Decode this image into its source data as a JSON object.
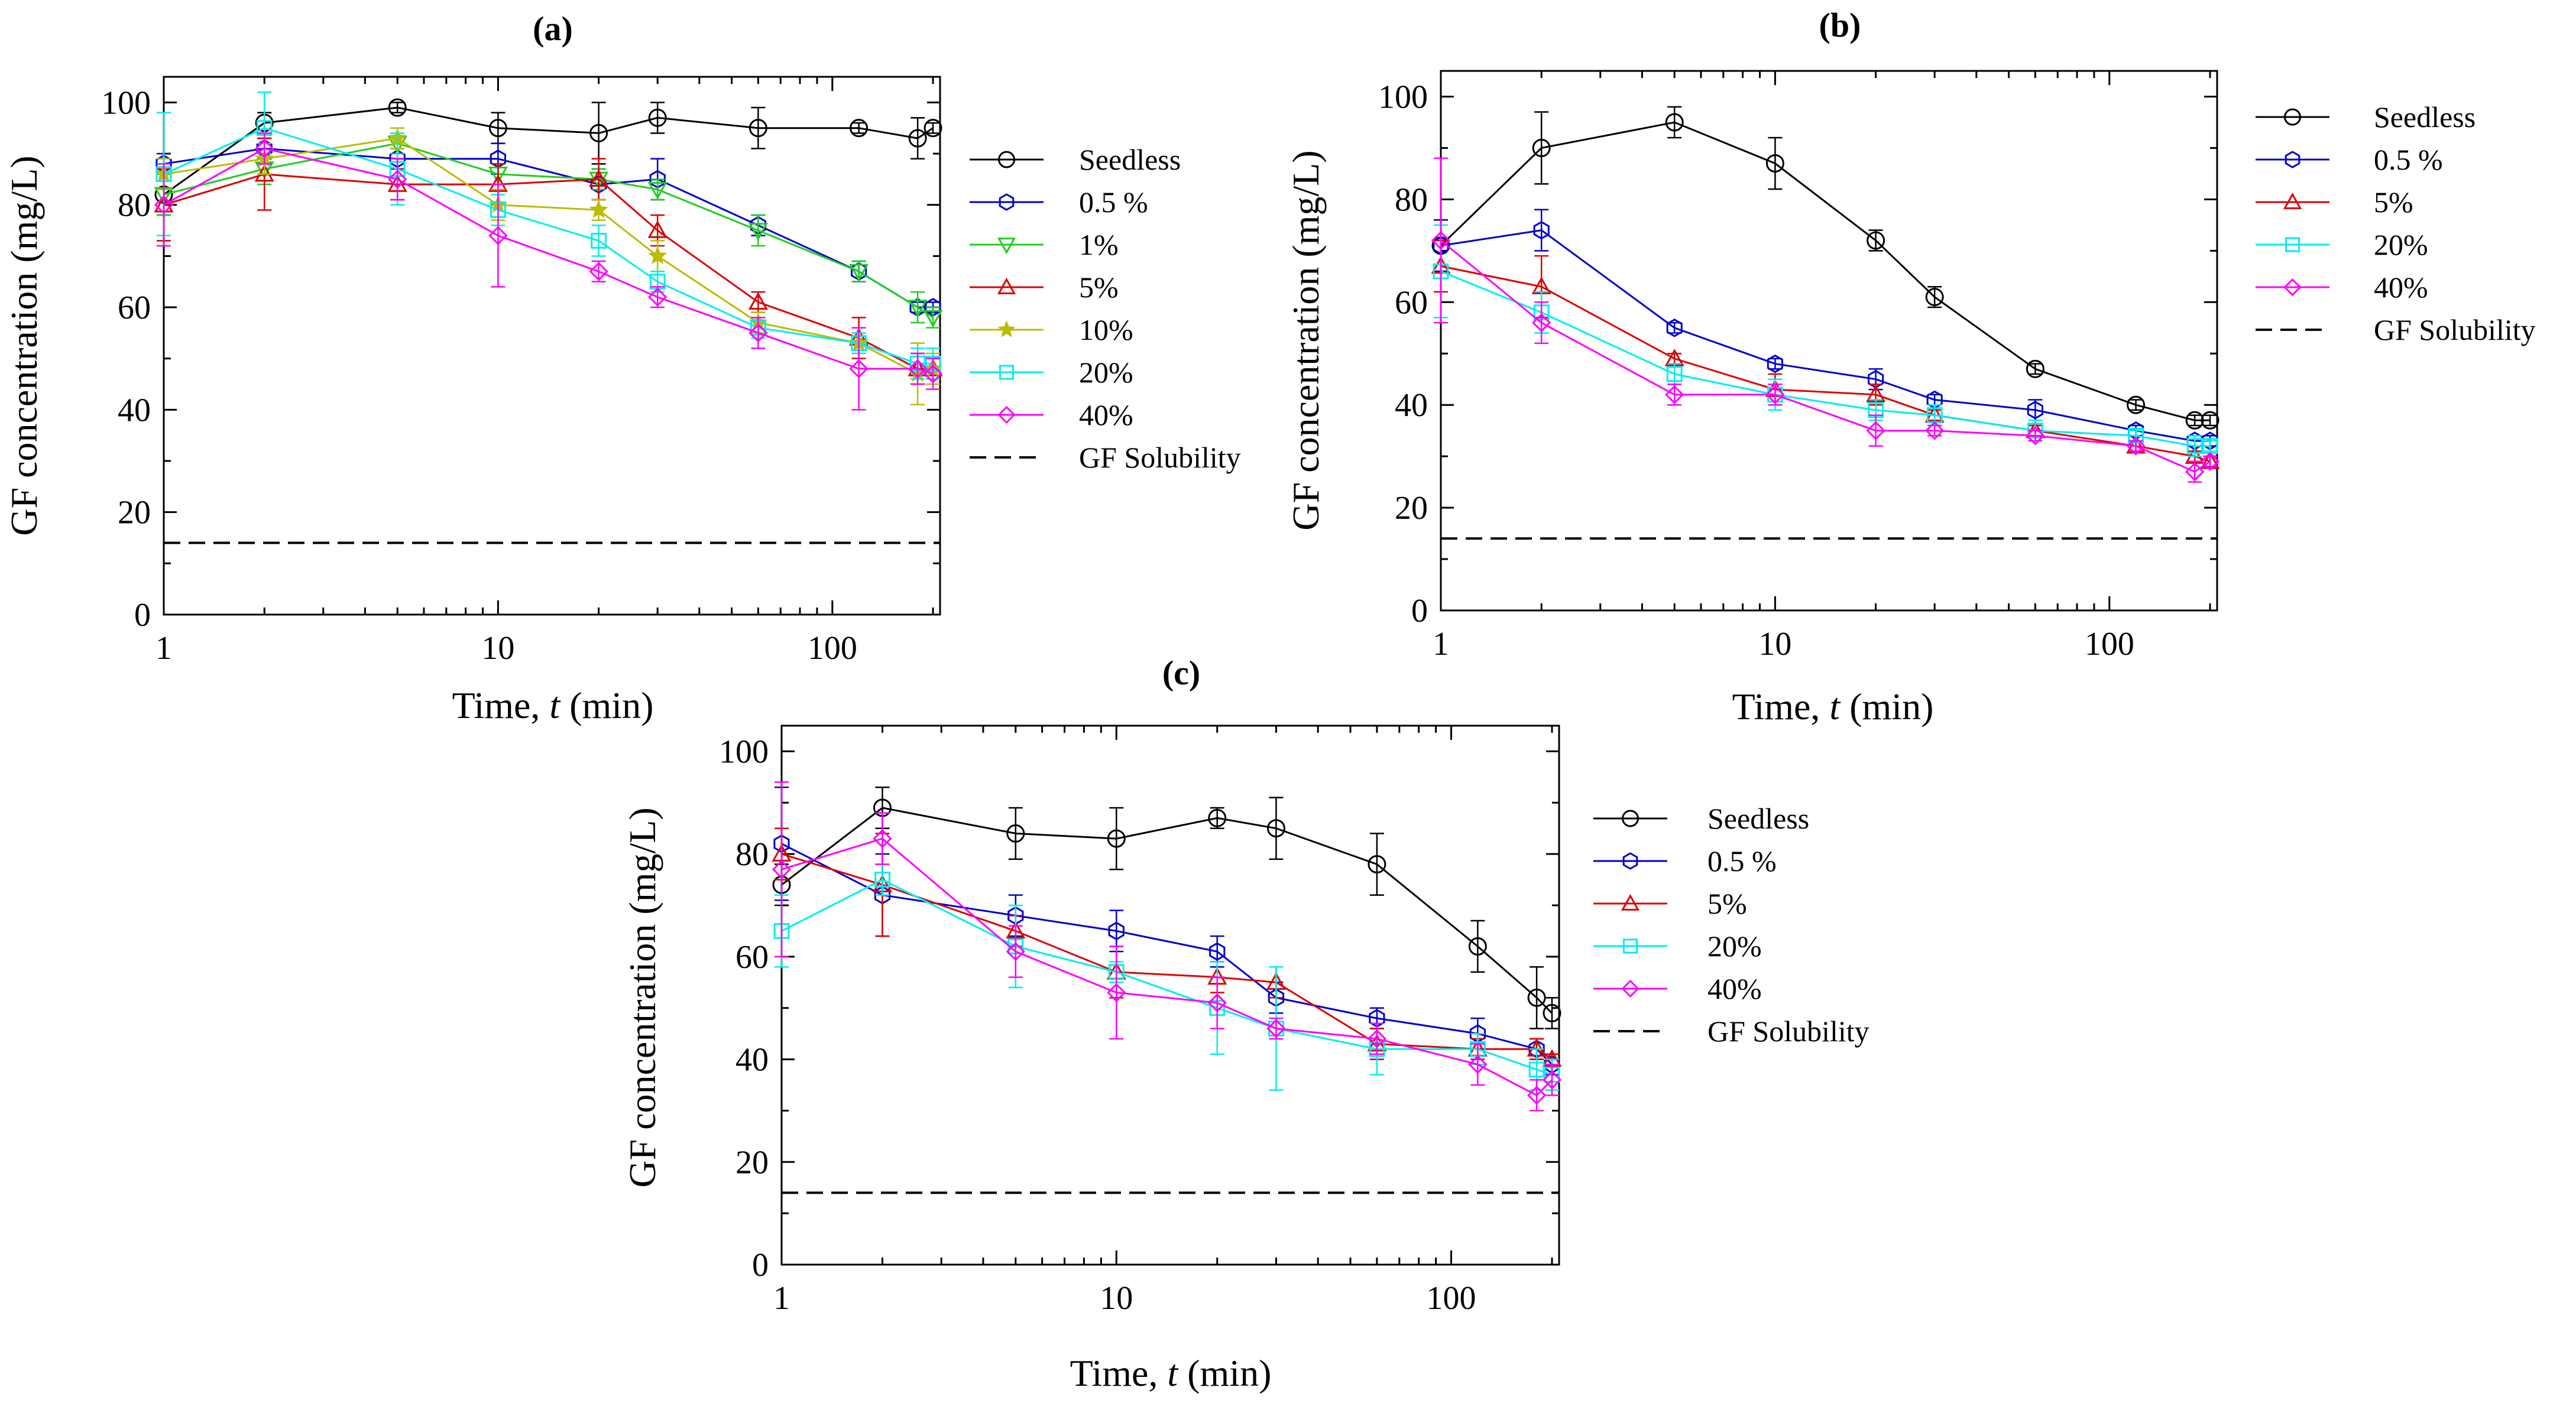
{
  "chart_data": [
    {
      "panel": "(a)",
      "type": "line",
      "xscale": "log",
      "xlabel_prefix": "Time, ",
      "xlabel_var": "t",
      "xlabel_suffix": " (min)",
      "ylabel": "GF concentration (mg/L)",
      "xlim": [
        1,
        210
      ],
      "ylim": [
        0,
        105
      ],
      "xticks": [
        {
          "v": 1,
          "label": "1"
        },
        {
          "v": 10,
          "label": "10"
        },
        {
          "v": 100,
          "label": "100"
        }
      ],
      "yticks": [
        {
          "v": 0,
          "label": "0"
        },
        {
          "v": 20,
          "label": "20"
        },
        {
          "v": 40,
          "label": "40"
        },
        {
          "v": 60,
          "label": "60"
        },
        {
          "v": 80,
          "label": "80"
        },
        {
          "v": 100,
          "label": "100"
        }
      ],
      "x": [
        1,
        2,
        5,
        10,
        20,
        30,
        60,
        120,
        180,
        200
      ],
      "series": [
        {
          "name": "Seedless",
          "color": "#000000",
          "marker": "circle",
          "values": [
            82,
            96,
            99,
            95,
            94,
            97,
            95,
            95,
            93,
            95
          ],
          "errors": [
            4,
            2,
            1,
            3,
            6,
            3,
            4,
            1,
            4,
            1
          ]
        },
        {
          "name": "0.5 %",
          "color": "#0000cc",
          "marker": "hexagon",
          "values": [
            88,
            91,
            89,
            89,
            84,
            85,
            76,
            67,
            60,
            60
          ],
          "errors": [
            2,
            2,
            2,
            3,
            3,
            4,
            2,
            2,
            1,
            1
          ]
        },
        {
          "name": "1%",
          "color": "#22cc22",
          "marker": "triangle-down",
          "values": [
            82,
            87,
            92,
            86,
            85,
            83,
            75,
            67,
            60,
            58
          ],
          "errors": [
            4,
            3,
            2,
            2,
            2,
            2,
            3,
            2,
            3,
            2
          ]
        },
        {
          "name": "5%",
          "color": "#dd0000",
          "marker": "triangle-up",
          "values": [
            80,
            86,
            84,
            84,
            85,
            75,
            61,
            54,
            48,
            48
          ],
          "errors": [
            7,
            7,
            3,
            4,
            4,
            3,
            2,
            4,
            3,
            2
          ]
        },
        {
          "name": "10%",
          "color": "#bbbb00",
          "marker": "star",
          "values": [
            86,
            89,
            93,
            80,
            79,
            70,
            57,
            53,
            47,
            48
          ],
          "errors": [
            3,
            3,
            2,
            3,
            2,
            3,
            2,
            2,
            6,
            3
          ]
        },
        {
          "name": "20%",
          "color": "#00eeee",
          "marker": "square",
          "values": [
            86,
            95,
            87,
            79,
            73,
            65,
            56,
            53,
            49,
            49
          ],
          "errors": [
            12,
            7,
            7,
            3,
            3,
            2,
            2,
            2,
            3,
            3
          ]
        },
        {
          "name": "40%",
          "color": "#ff00ff",
          "marker": "diamond",
          "values": [
            80,
            91,
            85,
            74,
            67,
            62,
            55,
            48,
            48,
            47
          ],
          "errors": [
            8,
            3,
            4,
            10,
            2,
            2,
            3,
            8,
            3,
            3
          ]
        }
      ],
      "solubility": {
        "name": "GF Solubility",
        "value": 14
      }
    },
    {
      "panel": "(b)",
      "type": "line",
      "xscale": "log",
      "xlabel_prefix": "Time, ",
      "xlabel_var": "t",
      "xlabel_suffix": " (min)",
      "ylabel": "GF concentration (mg/L)",
      "xlim": [
        1,
        210
      ],
      "ylim": [
        0,
        105
      ],
      "xticks": [
        {
          "v": 1,
          "label": "1"
        },
        {
          "v": 10,
          "label": "10"
        },
        {
          "v": 100,
          "label": "100"
        }
      ],
      "yticks": [
        {
          "v": 0,
          "label": "0"
        },
        {
          "v": 20,
          "label": "20"
        },
        {
          "v": 40,
          "label": "40"
        },
        {
          "v": 60,
          "label": "60"
        },
        {
          "v": 80,
          "label": "80"
        },
        {
          "v": 100,
          "label": "100"
        }
      ],
      "x": [
        1,
        2,
        5,
        10,
        20,
        30,
        60,
        120,
        180,
        200
      ],
      "series": [
        {
          "name": "Seedless",
          "color": "#000000",
          "marker": "circle",
          "values": [
            71,
            90,
            95,
            87,
            72,
            61,
            47,
            40,
            37,
            37
          ],
          "errors": [
            5,
            7,
            3,
            5,
            2,
            2,
            1,
            1,
            1,
            1
          ]
        },
        {
          "name": "0.5 %",
          "color": "#0000cc",
          "marker": "hexagon",
          "values": [
            71,
            74,
            55,
            48,
            45,
            41,
            39,
            35,
            33,
            33
          ],
          "errors": [
            5,
            4,
            1,
            1,
            2,
            1,
            2,
            1,
            1,
            1
          ]
        },
        {
          "name": "5%",
          "color": "#dd0000",
          "marker": "triangle-up",
          "values": [
            67,
            63,
            49,
            43,
            42,
            38,
            35,
            32,
            30,
            29
          ],
          "errors": [
            5,
            6,
            1,
            3,
            2,
            1,
            1,
            1,
            1,
            1
          ]
        },
        {
          "name": "20%",
          "color": "#00eeee",
          "marker": "square",
          "values": [
            66,
            58,
            46,
            42,
            39,
            38,
            35,
            34,
            32,
            32
          ],
          "errors": [
            9,
            4,
            2,
            3,
            2,
            2,
            2,
            1,
            2,
            1
          ]
        },
        {
          "name": "40%",
          "color": "#ff00ff",
          "marker": "diamond",
          "values": [
            72,
            56,
            42,
            42,
            35,
            35,
            34,
            32,
            27,
            29
          ],
          "errors": [
            16,
            4,
            2,
            2,
            3,
            1,
            1,
            1,
            2,
            1
          ]
        }
      ],
      "solubility": {
        "name": "GF Solubility",
        "value": 14
      }
    },
    {
      "panel": "(c)",
      "type": "line",
      "xscale": "log",
      "xlabel_prefix": "Time, ",
      "xlabel_var": "t",
      "xlabel_suffix": " (min)",
      "ylabel": "GF concentration (mg/L)",
      "xlim": [
        1,
        210
      ],
      "ylim": [
        0,
        105
      ],
      "xticks": [
        {
          "v": 1,
          "label": "1"
        },
        {
          "v": 10,
          "label": "10"
        },
        {
          "v": 100,
          "label": "100"
        }
      ],
      "yticks": [
        {
          "v": 0,
          "label": "0"
        },
        {
          "v": 20,
          "label": "20"
        },
        {
          "v": 40,
          "label": "40"
        },
        {
          "v": 60,
          "label": "60"
        },
        {
          "v": 80,
          "label": "80"
        },
        {
          "v": 100,
          "label": "100"
        }
      ],
      "x": [
        1,
        2,
        5,
        10,
        20,
        30,
        60,
        120,
        180,
        200
      ],
      "series": [
        {
          "name": "Seedless",
          "color": "#000000",
          "marker": "circle",
          "values": [
            74,
            89,
            84,
            83,
            87,
            85,
            78,
            62,
            52,
            49
          ],
          "errors": [
            4,
            4,
            5,
            6,
            2,
            6,
            6,
            5,
            6,
            3
          ]
        },
        {
          "name": "0.5 %",
          "color": "#0000cc",
          "marker": "hexagon",
          "values": [
            82,
            72,
            68,
            65,
            61,
            52,
            48,
            45,
            42,
            39
          ],
          "errors": [
            11,
            8,
            4,
            4,
            3,
            3,
            2,
            3,
            2,
            2
          ]
        },
        {
          "name": "5%",
          "color": "#dd0000",
          "marker": "triangle-up",
          "values": [
            80,
            74,
            65,
            57,
            56,
            55,
            43,
            42,
            42,
            40
          ],
          "errors": [
            5,
            10,
            3,
            5,
            3,
            3,
            3,
            2,
            2,
            1
          ]
        },
        {
          "name": "20%",
          "color": "#00eeee",
          "marker": "square",
          "values": [
            65,
            75,
            62,
            57,
            50,
            46,
            42,
            42,
            38,
            37
          ],
          "errors": [
            7,
            3,
            8,
            2,
            9,
            12,
            5,
            3,
            4,
            3
          ]
        },
        {
          "name": "40%",
          "color": "#ff00ff",
          "marker": "diamond",
          "values": [
            77,
            83,
            61,
            53,
            51,
            46,
            44,
            39,
            33,
            36
          ],
          "errors": [
            17,
            5,
            5,
            9,
            5,
            2,
            3,
            4,
            3,
            3
          ]
        }
      ],
      "solubility": {
        "name": "GF Solubility",
        "value": 14
      }
    }
  ]
}
